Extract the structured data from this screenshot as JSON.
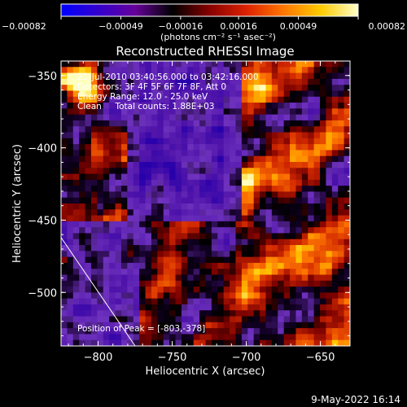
{
  "chart_data": {
    "type": "heatmap",
    "title": "Reconstructed RHESSI Image",
    "xlabel": "Heliocentric X (arcsec)",
    "ylabel": "Heliocentric Y (arcsec)",
    "xlim": [
      -825,
      -630
    ],
    "ylim": [
      -537,
      -340
    ],
    "x_ticks": [
      {
        "value": -800,
        "label": "−800"
      },
      {
        "value": -750,
        "label": "−750"
      },
      {
        "value": -700,
        "label": "−700"
      },
      {
        "value": -650,
        "label": "−650"
      }
    ],
    "y_ticks": [
      {
        "value": -350,
        "label": "−350"
      },
      {
        "value": -400,
        "label": "−400"
      },
      {
        "value": -450,
        "label": "−450"
      },
      {
        "value": -500,
        "label": "−500"
      }
    ],
    "colorbar": {
      "min": -0.00082,
      "max": 0.00082,
      "ticks": [
        {
          "value": -0.00082,
          "label": "−0.00082"
        },
        {
          "value": -0.00049,
          "label": "−0.00049"
        },
        {
          "value": -0.00016,
          "label": "−0.00016"
        },
        {
          "value": 0.00016,
          "label": "0.00016"
        },
        {
          "value": 0.00049,
          "label": "0.00049"
        },
        {
          "value": 0.00082,
          "label": "0.00082"
        }
      ],
      "unit_label": "(photons cm⁻² s⁻¹ asec⁻²)",
      "colors": [
        "#0000ff",
        "#3300cc",
        "#660099",
        "#000000",
        "#880000",
        "#dd2200",
        "#ff7700",
        "#ffcc00",
        "#ffffcc"
      ]
    },
    "annotations": [
      "21-Jul-2010 03:40:56.000 to 03:42:16.000",
      "Detectors: 3F 4F 5F 6F 7F 8F, Att 0",
      "Energy Range: 12.0 - 25.0 keV",
      "Clean     Total counts: 1.88E+03"
    ],
    "peak_label": "Position of Peak = [-803,-378]",
    "peak": [
      -803,
      -378
    ],
    "limb_line": [
      [
        -825,
        -462
      ],
      [
        -775,
        -537
      ]
    ]
  },
  "timestamp": "9-May-2022 16:14"
}
